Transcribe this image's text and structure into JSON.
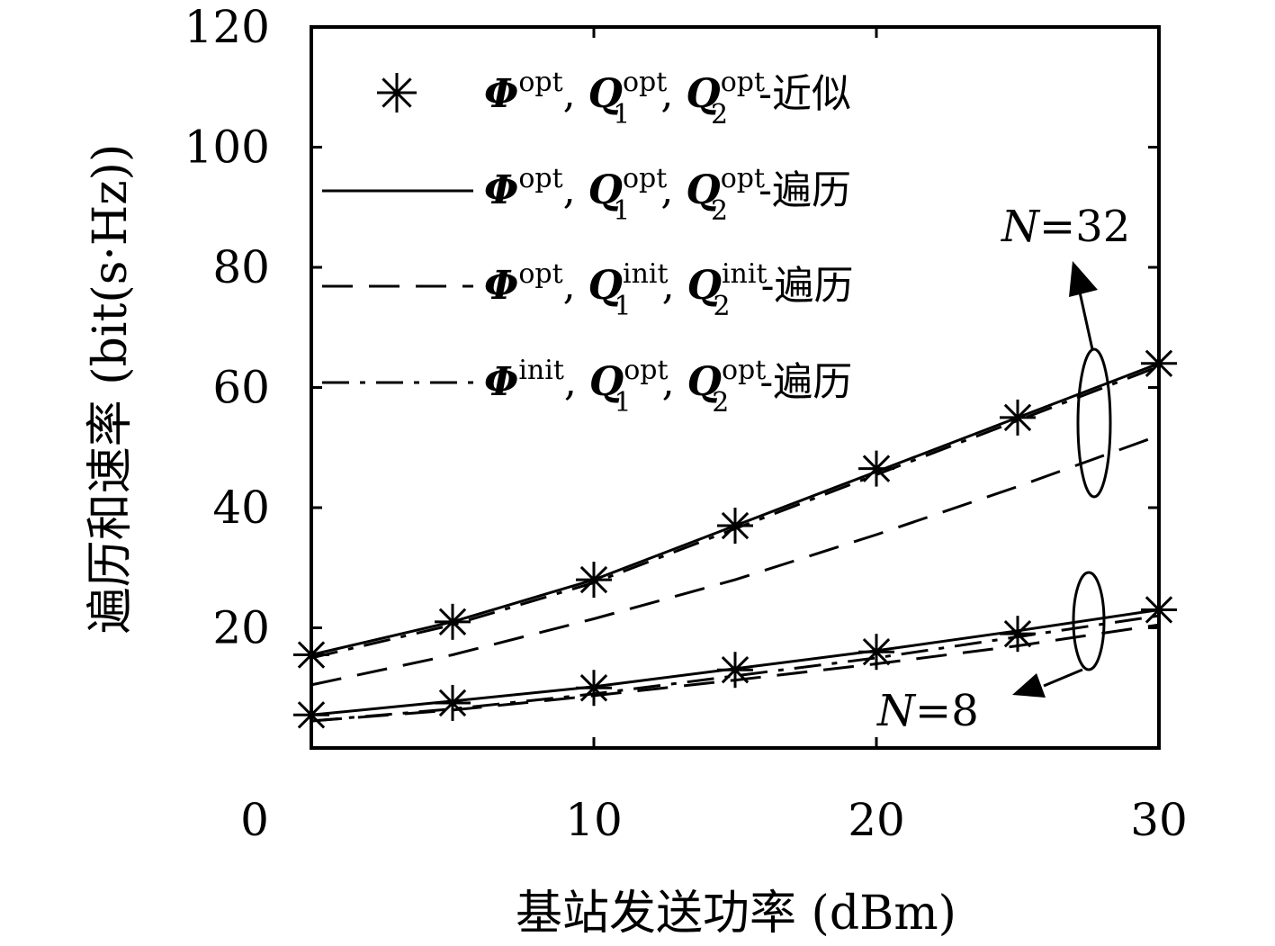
{
  "chart_data": {
    "type": "line",
    "xlabel": "基站发送功率 (dBm)",
    "ylabel": "遍历和速率 (bit(s·Hz))",
    "xlim": [
      0,
      30
    ],
    "ylim": [
      0,
      120
    ],
    "x_ticks": [
      "0",
      "10",
      "20",
      "30"
    ],
    "y_ticks": [
      "20",
      "40",
      "60",
      "80",
      "100",
      "120"
    ],
    "grid": false,
    "legend_position": "top",
    "legend": [
      {
        "style": "marker-star",
        "sym": "Φ",
        "sup1": "opt",
        "q1": "Q",
        "q1sup": "opt",
        "q1sub": "1",
        "q2": "Q",
        "q2sup": "opt",
        "q2sub": "2",
        "suffix": "-近似"
      },
      {
        "style": "solid",
        "sym": "Φ",
        "sup1": "opt",
        "q1": "Q",
        "q1sup": "opt",
        "q1sub": "1",
        "q2": "Q",
        "q2sup": "opt",
        "q2sub": "2",
        "suffix": "-遍历"
      },
      {
        "style": "dashed",
        "sym": "Φ",
        "sup1": "opt",
        "q1": "Q",
        "q1sup": "init",
        "q1sub": "1",
        "q2": "Q",
        "q2sup": "init",
        "q2sub": "2",
        "suffix": "-遍历"
      },
      {
        "style": "dashdot",
        "sym": "Φ",
        "sup1": "init",
        "q1": "Q",
        "q1sup": "opt",
        "q1sub": "1",
        "q2": "Q",
        "q2sup": "opt",
        "q2sub": "2",
        "suffix": "-遍历"
      }
    ],
    "annotations": [
      {
        "var": "N",
        "eq": "=32"
      },
      {
        "var": "N",
        "eq": "=8"
      }
    ],
    "series": [
      {
        "style": "marker-star",
        "group": "N=32",
        "x": [
          0,
          5,
          10,
          15,
          20,
          25,
          30
        ],
        "y": [
          15.5,
          21,
          28,
          37,
          46.5,
          55,
          64
        ]
      },
      {
        "style": "solid",
        "group": "N=32",
        "x": [
          0,
          5,
          10,
          15,
          20,
          25,
          30
        ],
        "y": [
          15.5,
          21,
          28,
          37,
          46,
          55,
          64
        ]
      },
      {
        "style": "dashdot",
        "group": "N=32",
        "x": [
          0,
          5,
          10,
          15,
          20,
          25,
          30
        ],
        "y": [
          15,
          20.5,
          27.5,
          36.5,
          45.5,
          54.5,
          63.5
        ]
      },
      {
        "style": "dashed",
        "group": "N=32",
        "x": [
          0,
          5,
          10,
          15,
          20,
          25,
          30
        ],
        "y": [
          10.5,
          15.5,
          21.5,
          28,
          35.5,
          43.5,
          52
        ]
      },
      {
        "style": "marker-star",
        "group": "N=8",
        "x": [
          0,
          5,
          10,
          15,
          20,
          25,
          30
        ],
        "y": [
          5.5,
          7.5,
          10,
          13,
          16,
          19,
          23
        ]
      },
      {
        "style": "solid",
        "group": "N=8",
        "x": [
          0,
          5,
          10,
          15,
          20,
          25,
          30
        ],
        "y": [
          5.5,
          7.8,
          10.2,
          13.2,
          16.2,
          19.5,
          23
        ]
      },
      {
        "style": "dashdot",
        "group": "N=8",
        "x": [
          0,
          5,
          10,
          15,
          20,
          25,
          30
        ],
        "y": [
          4.5,
          6.5,
          9,
          12,
          15,
          18.5,
          22
        ]
      },
      {
        "style": "dashed",
        "group": "N=8",
        "x": [
          0,
          5,
          10,
          15,
          20,
          25,
          30
        ],
        "y": [
          4.5,
          6.3,
          8.7,
          11.3,
          14,
          17,
          20.5
        ]
      }
    ]
  }
}
